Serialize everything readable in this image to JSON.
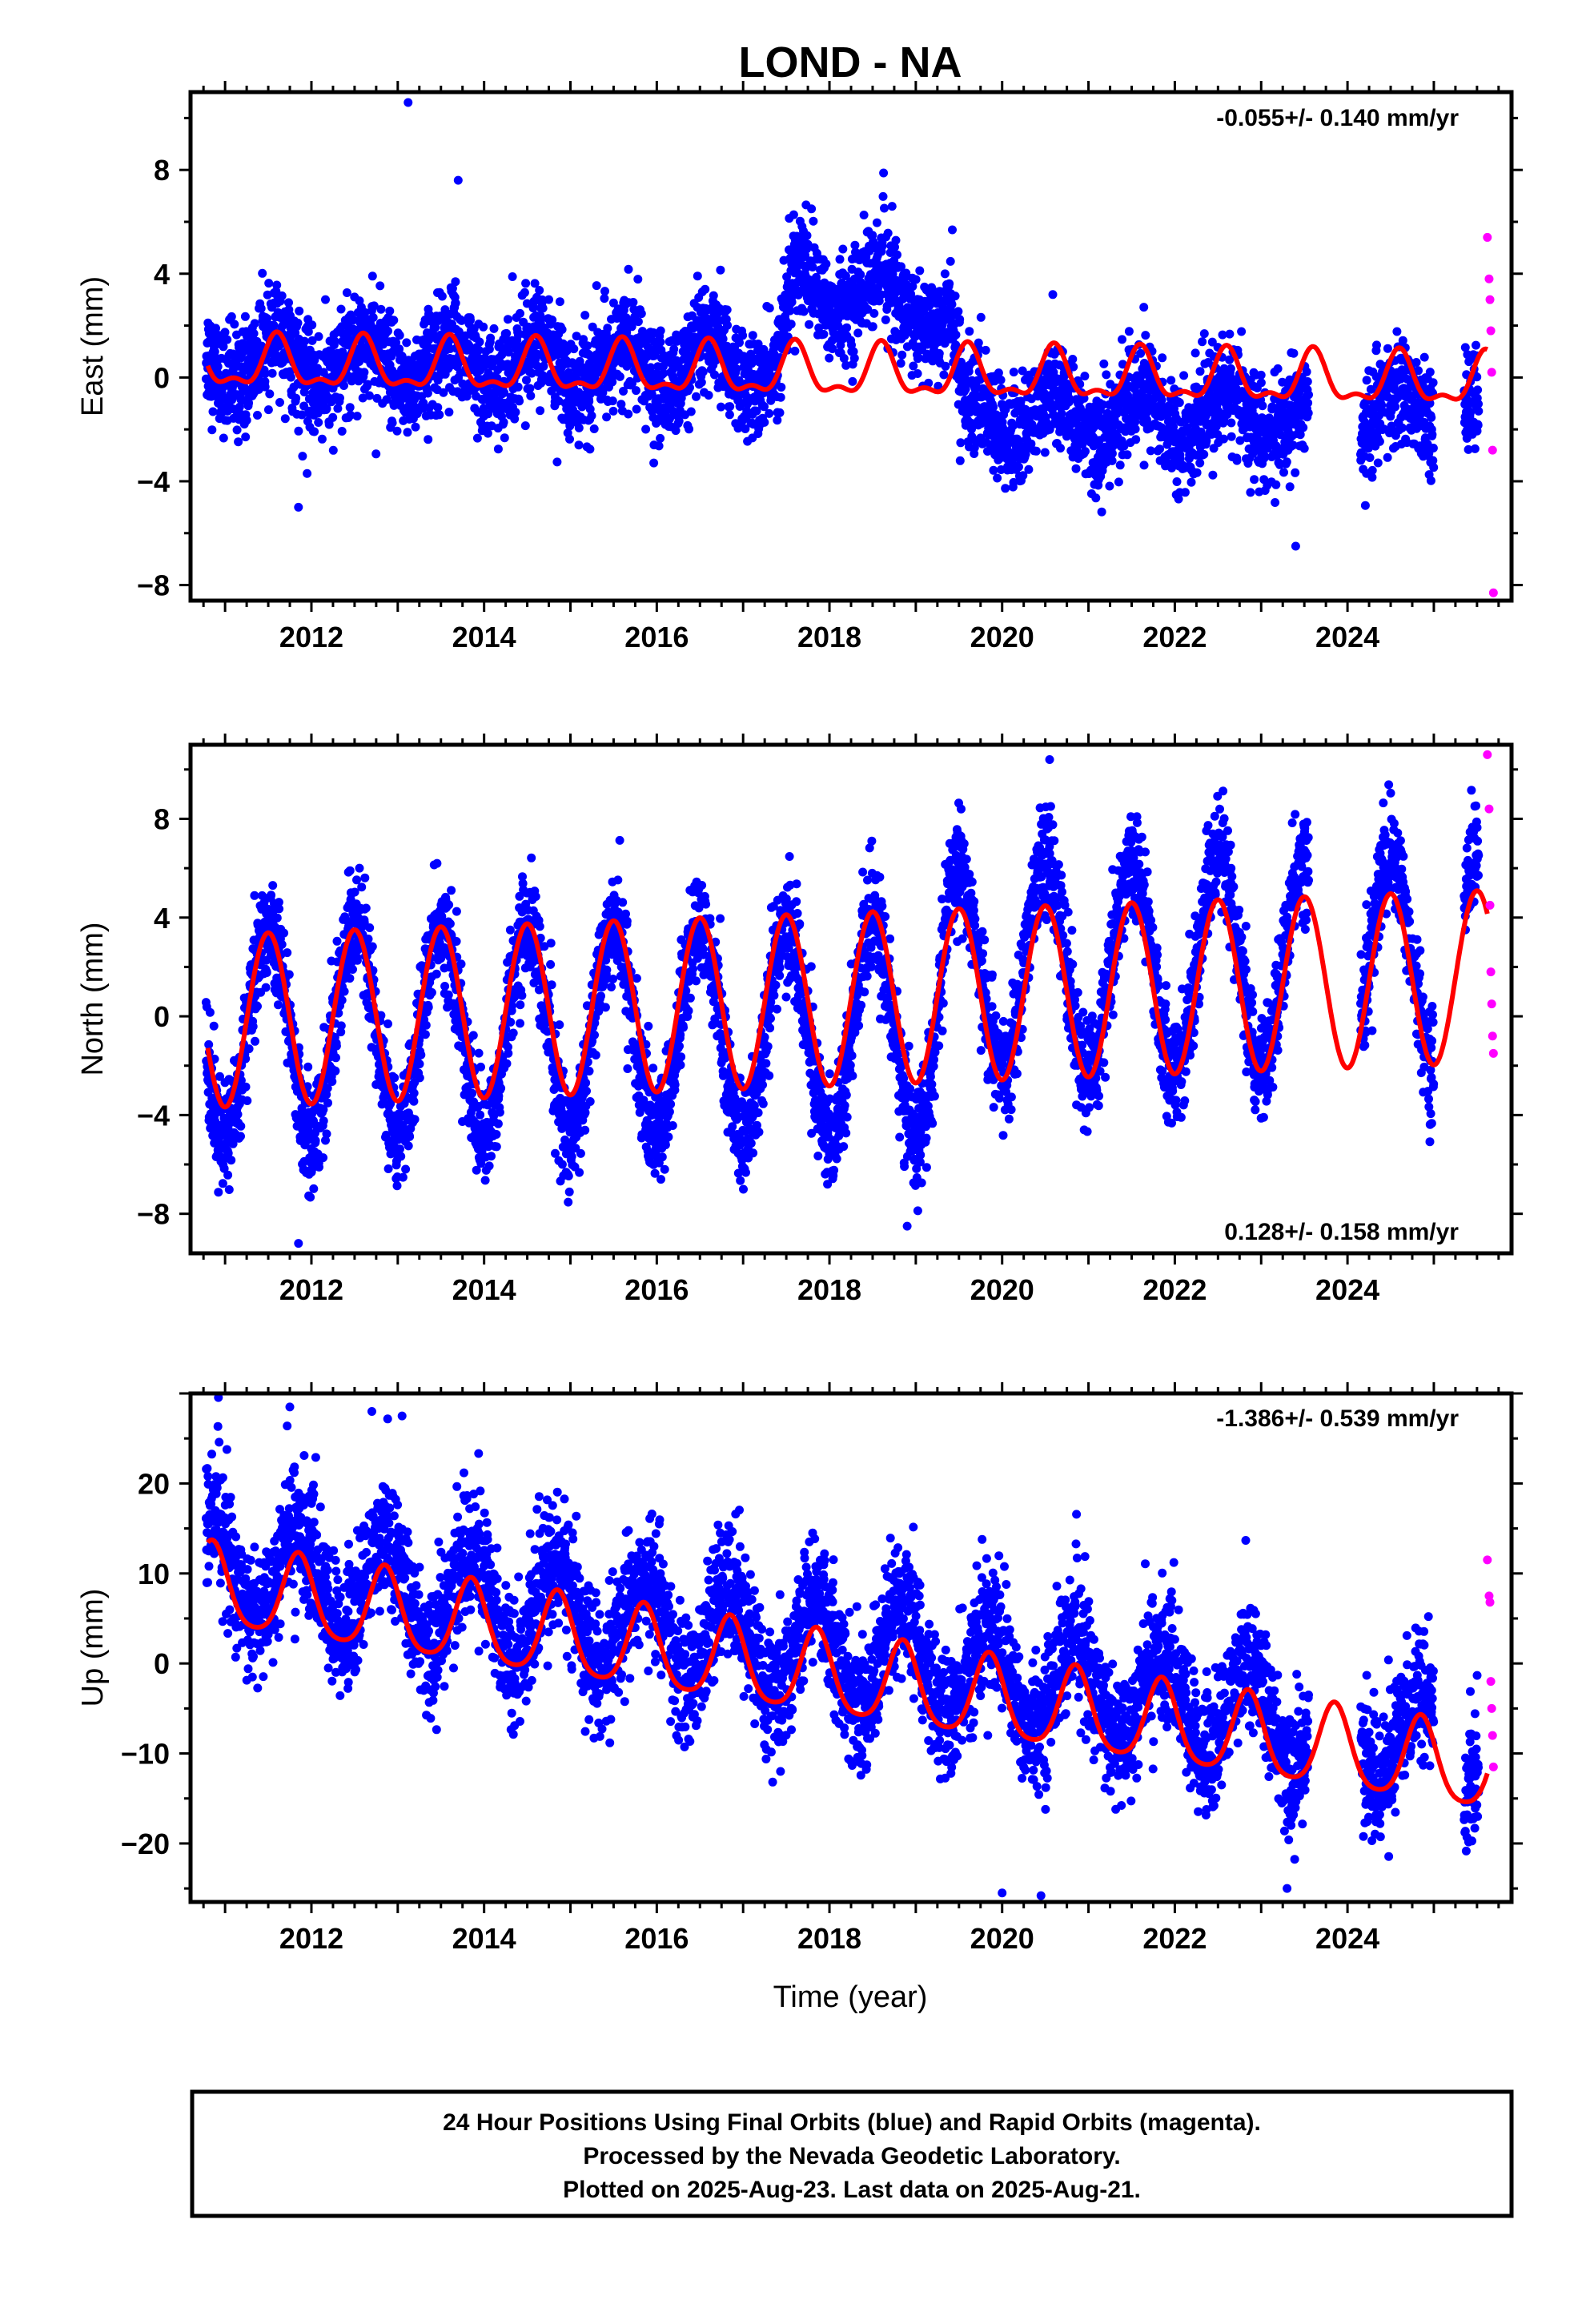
{
  "title": "LOND - NA",
  "colors": {
    "final": "#0000ff",
    "rapid": "#ff00ff",
    "model": "#ff0000",
    "frame": "#000000"
  },
  "footer": [
    "24 Hour Positions Using Final Orbits (blue) and Rapid Orbits (magenta).",
    "Processed by the Nevada Geodetic Laboratory.",
    "Plotted on 2025-Aug-23. Last data on 2025-Aug-21."
  ],
  "xlabel": "Time (year)",
  "chart_data": [
    {
      "type": "scatter",
      "ylabel": "East (mm)",
      "rate": "-0.055+/- 0.140 mm/yr",
      "xlim": [
        2010.6,
        2025.9
      ],
      "ylim": [
        -8.6,
        11.0
      ],
      "yticks": [
        -8,
        -4,
        0,
        4,
        8
      ],
      "xticks": [
        2012,
        2014,
        2016,
        2018,
        2020,
        2022,
        2024
      ],
      "data_trend": [
        [
          2010.8,
          0.6
        ],
        [
          2017.4,
          0.4
        ],
        [
          2017.6,
          3.5
        ],
        [
          2018.6,
          3.2
        ],
        [
          2019.4,
          2.3
        ],
        [
          2019.55,
          -1.5
        ],
        [
          2025.5,
          -1.4
        ]
      ],
      "data_seasonal_amp": 0.9,
      "data_scatter_sd": 1.0,
      "model": {
        "segments": [
          [
            2010.8,
            0.5
          ],
          [
            2025.6,
            -0.2
          ]
        ],
        "annual_amp": 0.9,
        "semi_amp": 0.4,
        "phase_peak": 2011.6
      },
      "gaps": [
        [
          2023.55,
          2024.15
        ],
        [
          2025.0,
          2025.35
        ]
      ],
      "rapid": {
        "x": [
          2025.62,
          2025.64,
          2025.65,
          2025.66,
          2025.67,
          2025.68,
          2025.69
        ],
        "y": [
          5.4,
          3.8,
          3.0,
          1.8,
          0.2,
          -2.8,
          -8.3
        ]
      },
      "outliers": [
        [
          2013.12,
          10.6
        ],
        [
          2013.7,
          7.6
        ],
        [
          2011.85,
          -5.0
        ],
        [
          2011.95,
          -3.7
        ],
        [
          2023.4,
          -6.5
        ]
      ]
    },
    {
      "type": "scatter",
      "ylabel": "North (mm)",
      "rate": "0.128+/- 0.158 mm/yr",
      "xlim": [
        2010.6,
        2025.9
      ],
      "ylim": [
        -9.6,
        11.0
      ],
      "yticks": [
        -8,
        -4,
        0,
        4,
        8
      ],
      "xticks": [
        2012,
        2014,
        2016,
        2018,
        2020,
        2022,
        2024
      ],
      "data_trend": [
        [
          2010.8,
          -0.6
        ],
        [
          2019.2,
          -0.6
        ],
        [
          2019.4,
          1.8
        ],
        [
          2025.5,
          2.3
        ]
      ],
      "data_seasonal_amp": 4.2,
      "data_scatter_sd": 1.1,
      "model": {
        "segments": [
          [
            2010.8,
            -0.2
          ],
          [
            2025.6,
            1.6
          ]
        ],
        "annual_amp": 3.5,
        "semi_amp": 0.0,
        "phase_peak": 2011.5
      },
      "gaps": [
        [
          2023.55,
          2024.15
        ],
        [
          2025.0,
          2025.35
        ]
      ],
      "rapid": {
        "x": [
          2025.62,
          2025.64,
          2025.65,
          2025.66,
          2025.67,
          2025.68,
          2025.69
        ],
        "y": [
          10.6,
          8.4,
          4.5,
          1.8,
          0.5,
          -0.8,
          -1.5
        ]
      },
      "outliers": [
        [
          2011.85,
          -9.2
        ],
        [
          2018.9,
          -8.5
        ],
        [
          2020.95,
          -4.6
        ],
        [
          2020.55,
          10.4
        ]
      ]
    },
    {
      "type": "scatter",
      "ylabel": "Up (mm)",
      "rate": "-1.386+/- 0.539 mm/yr",
      "xlim": [
        2010.6,
        2025.9
      ],
      "ylim": [
        -26.5,
        30.0
      ],
      "yticks": [
        -20,
        -10,
        0,
        10,
        20
      ],
      "xticks": [
        2012,
        2014,
        2016,
        2018,
        2020,
        2022,
        2024
      ],
      "data_trend": [
        [
          2010.8,
          11.0
        ],
        [
          2025.5,
          -9.0
        ]
      ],
      "data_seasonal_amp": 5.5,
      "data_scatter_sd": 3.6,
      "model": {
        "segments": [
          [
            2010.8,
            8.5
          ],
          [
            2025.6,
            -12.0
          ]
        ],
        "annual_amp": 4.5,
        "semi_amp": 0.8,
        "phase_peak": 2010.85
      },
      "gaps": [
        [
          2023.55,
          2024.15
        ],
        [
          2025.0,
          2025.35
        ]
      ],
      "rapid": {
        "x": [
          2025.62,
          2025.64,
          2025.65,
          2025.66,
          2025.67,
          2025.68,
          2025.69
        ],
        "y": [
          11.5,
          7.5,
          6.8,
          -2.0,
          -5.0,
          -8.0,
          -11.5
        ]
      },
      "outliers": [
        [
          2011.75,
          28.5
        ],
        [
          2012.7,
          28.0
        ],
        [
          2013.05,
          27.5
        ],
        [
          2020.0,
          -25.5
        ],
        [
          2020.45,
          -25.8
        ],
        [
          2023.3,
          -25.0
        ]
      ]
    }
  ]
}
